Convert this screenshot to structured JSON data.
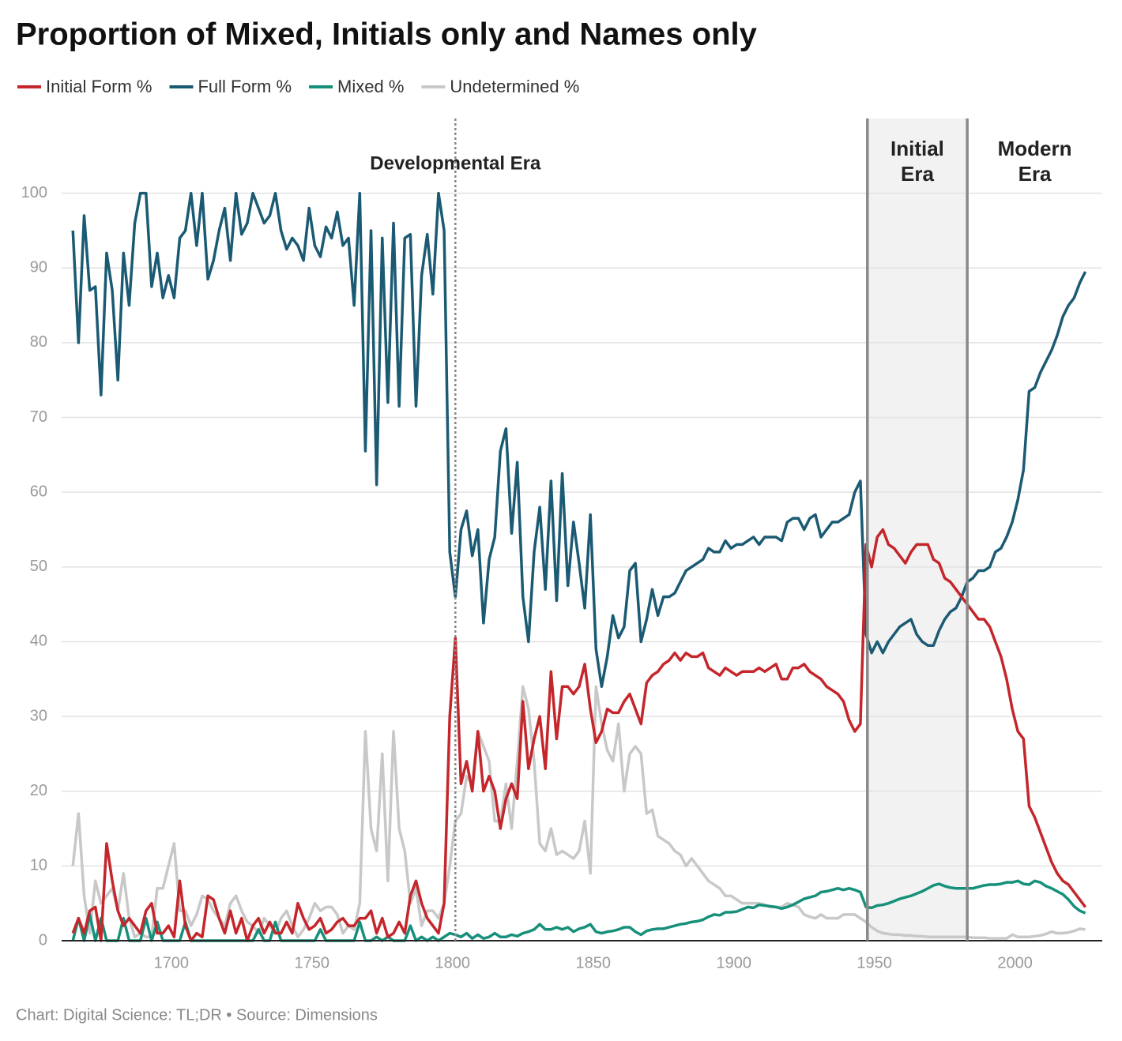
{
  "chart_data": {
    "type": "line",
    "title": "Proportion of Mixed, Initials only and Names only",
    "footer": "Chart: Digital Science: TL;DR • Source: Dimensions",
    "legend": "top-left",
    "grid": true,
    "xlim": [
      1661,
      2031
    ],
    "ylim": [
      0,
      110
    ],
    "xticks": [
      1700,
      1750,
      1800,
      1850,
      1900,
      1950,
      2000
    ],
    "yticks": [
      0,
      10,
      20,
      30,
      40,
      50,
      60,
      70,
      80,
      90,
      100
    ],
    "annotations": [
      {
        "text": "Developmental Era",
        "x": 1801
      },
      {
        "text": "Initial Era",
        "x_start": 1947.5,
        "x_end": 1983
      },
      {
        "text": "Modern Era"
      }
    ],
    "x": [
      1665,
      1667,
      1669,
      1671,
      1673,
      1675,
      1677,
      1679,
      1681,
      1683,
      1685,
      1687,
      1689,
      1691,
      1693,
      1695,
      1697,
      1699,
      1701,
      1703,
      1705,
      1707,
      1709,
      1711,
      1713,
      1715,
      1717,
      1719,
      1721,
      1723,
      1725,
      1727,
      1729,
      1731,
      1733,
      1735,
      1737,
      1739,
      1741,
      1743,
      1745,
      1747,
      1749,
      1751,
      1753,
      1755,
      1757,
      1759,
      1761,
      1763,
      1765,
      1767,
      1769,
      1771,
      1773,
      1775,
      1777,
      1779,
      1781,
      1783,
      1785,
      1787,
      1789,
      1791,
      1793,
      1795,
      1797,
      1799,
      1801,
      1803,
      1805,
      1807,
      1809,
      1811,
      1813,
      1815,
      1817,
      1819,
      1821,
      1823,
      1825,
      1827,
      1829,
      1831,
      1833,
      1835,
      1837,
      1839,
      1841,
      1843,
      1845,
      1847,
      1849,
      1851,
      1853,
      1855,
      1857,
      1859,
      1861,
      1863,
      1865,
      1867,
      1869,
      1871,
      1873,
      1875,
      1877,
      1879,
      1881,
      1883,
      1885,
      1887,
      1889,
      1891,
      1893,
      1895,
      1897,
      1899,
      1901,
      1903,
      1905,
      1907,
      1909,
      1911,
      1913,
      1915,
      1917,
      1919,
      1921,
      1923,
      1925,
      1927,
      1929,
      1931,
      1933,
      1935,
      1937,
      1939,
      1941,
      1943,
      1945,
      1947,
      1949,
      1951,
      1953,
      1955,
      1957,
      1959,
      1961,
      1963,
      1965,
      1967,
      1969,
      1971,
      1973,
      1975,
      1977,
      1979,
      1981,
      1983,
      1985,
      1987,
      1989,
      1991,
      1993,
      1995,
      1997,
      1999,
      2001,
      2003,
      2005,
      2007,
      2009,
      2011,
      2013,
      2015,
      2017,
      2019,
      2021,
      2023,
      2025
    ],
    "series": [
      {
        "name": "Initial Form %",
        "color": "#c4262b",
        "values": [
          1,
          3,
          1,
          4,
          4.5,
          0,
          13,
          8,
          4,
          2,
          3,
          2,
          1,
          4,
          5,
          1,
          1,
          2,
          0.5,
          8,
          2,
          0,
          1,
          0.5,
          6,
          5.5,
          3,
          1,
          4,
          1,
          3,
          0,
          2,
          3,
          1,
          2.5,
          1,
          1,
          2.5,
          1,
          5,
          3,
          1.5,
          2,
          3,
          1,
          1.5,
          2.5,
          3,
          2,
          2,
          3,
          3,
          4,
          1,
          3,
          0.5,
          1,
          2.5,
          1,
          6,
          8,
          5,
          3,
          2,
          1,
          5,
          30,
          40.5,
          21,
          24,
          20,
          28,
          20,
          22,
          20,
          15,
          19,
          21,
          19,
          32,
          23,
          27,
          30,
          23,
          36,
          27,
          34,
          34,
          33,
          34,
          37,
          31,
          26.5,
          28,
          31,
          30.5,
          30.5,
          32,
          33,
          31,
          29,
          34.5,
          35.5,
          36,
          37,
          37.5,
          38.5,
          37.5,
          38.5,
          38,
          38,
          38.5,
          36.5,
          36,
          35.5,
          36.5,
          36,
          35.5,
          36,
          36,
          36,
          36.5,
          36,
          36.5,
          37,
          35,
          35,
          36.5,
          36.5,
          37,
          36,
          35.5,
          35,
          34,
          33.5,
          33,
          32,
          29.5,
          28,
          29,
          53,
          50,
          54,
          55,
          53,
          52.5,
          51.5,
          50.5,
          52,
          53,
          53,
          53,
          51,
          50.5,
          48.5,
          48,
          47,
          46,
          45,
          44,
          43,
          43,
          42,
          40,
          38,
          35,
          31,
          28,
          27,
          18,
          16.5,
          14.5,
          12.5,
          10.5,
          9,
          8,
          7.5,
          6.5,
          5.5,
          4.5
        ]
      },
      {
        "name": "Full Form %",
        "color": "#1b5a73",
        "values": [
          95,
          80,
          97,
          87,
          87.5,
          73,
          92,
          87,
          75,
          92,
          85,
          96,
          100,
          100,
          87.5,
          92,
          86,
          89,
          86,
          94,
          95,
          100,
          93,
          100,
          88.5,
          91,
          95,
          98,
          91,
          100,
          94.5,
          96,
          100,
          98,
          96,
          97,
          100,
          95,
          92.5,
          94,
          93,
          91,
          98,
          93,
          91.5,
          95.5,
          94,
          97.5,
          93,
          94,
          85,
          100,
          65.5,
          95,
          61,
          94,
          72,
          96,
          71.5,
          94,
          94.5,
          71.5,
          89,
          94.5,
          86.5,
          100,
          95,
          52,
          46,
          55,
          57.5,
          51.5,
          55,
          42.5,
          51,
          54,
          65.5,
          68.5,
          54.5,
          64,
          46,
          40,
          52,
          58,
          47,
          61.5,
          45.5,
          62.5,
          47.5,
          56,
          50.5,
          44.5,
          57,
          39,
          34,
          38,
          43.5,
          40.5,
          42,
          49.5,
          50.5,
          40,
          43,
          47,
          43.5,
          46,
          46,
          46.5,
          48,
          49.5,
          50,
          50.5,
          51,
          52.5,
          52,
          52,
          53.5,
          52.5,
          53,
          53,
          53.5,
          54,
          53,
          54,
          54,
          54,
          53.5,
          56,
          56.5,
          56.5,
          55,
          56.5,
          57,
          54,
          55,
          56,
          56,
          56.5,
          57,
          60,
          61.5,
          41,
          38.5,
          40,
          38.5,
          40,
          41,
          42,
          42.5,
          43,
          41,
          40,
          39.5,
          39.5,
          41.5,
          43,
          44,
          44.5,
          46,
          48,
          48.5,
          49.5,
          49.5,
          50,
          52,
          52.5,
          54,
          56,
          59,
          63,
          73.5,
          74,
          76,
          77.5,
          79,
          81,
          83.5,
          85,
          86,
          88,
          89.5
        ]
      },
      {
        "name": "Mixed %",
        "color": "#16907a",
        "values": [
          0,
          3,
          0,
          3.5,
          0,
          3,
          0,
          0,
          0,
          3,
          0,
          0,
          0,
          3,
          0,
          2.5,
          0,
          0,
          0,
          0,
          2.5,
          0,
          0,
          0,
          0,
          0,
          0,
          0,
          0,
          0,
          0,
          0,
          0,
          1.5,
          0,
          0,
          2.5,
          0,
          0,
          0,
          0,
          0,
          0,
          0,
          1.5,
          0,
          0,
          0,
          0,
          0,
          0,
          2.5,
          0,
          0,
          0.5,
          0,
          0.5,
          0,
          0,
          0,
          2,
          0,
          0.5,
          0,
          0.5,
          0,
          0.5,
          1,
          0.8,
          0.5,
          1,
          0.3,
          0.8,
          0.3,
          0.5,
          1,
          0.5,
          0.5,
          0.8,
          0.6,
          1,
          1.2,
          1.5,
          2.2,
          1.5,
          1.5,
          1.8,
          1.5,
          1.8,
          1.2,
          1.6,
          1.8,
          2.2,
          1.2,
          1,
          1.2,
          1.3,
          1.5,
          1.8,
          1.8,
          1.2,
          0.8,
          1.3,
          1.5,
          1.6,
          1.6,
          1.8,
          2,
          2.2,
          2.3,
          2.5,
          2.6,
          2.8,
          3.2,
          3.5,
          3.4,
          3.8,
          3.8,
          3.9,
          4.2,
          4.5,
          4.4,
          4.8,
          4.7,
          4.6,
          4.5,
          4.3,
          4.5,
          4.8,
          5.2,
          5.6,
          5.8,
          6,
          6.5,
          6.6,
          6.8,
          7,
          6.8,
          7,
          6.8,
          6.5,
          4.5,
          4.4,
          4.7,
          4.8,
          5,
          5.3,
          5.6,
          5.8,
          6,
          6.3,
          6.6,
          7,
          7.4,
          7.6,
          7.3,
          7.1,
          7,
          7,
          7,
          7,
          7.2,
          7.4,
          7.5,
          7.5,
          7.6,
          7.8,
          7.8,
          8,
          7.6,
          7.5,
          8,
          7.8,
          7.3,
          7,
          6.6,
          6.2,
          5.5,
          4.6,
          4,
          3.7
        ]
      },
      {
        "name": "Undetermined %",
        "color": "#c8c8c8",
        "values": [
          10,
          17,
          6,
          1,
          8,
          5,
          6,
          7,
          4,
          9,
          3,
          0.5,
          1,
          0.5,
          0.5,
          7,
          7,
          10,
          13,
          4,
          4,
          2,
          3.5,
          6,
          5.5,
          4,
          3,
          2,
          5,
          6,
          4,
          2.5,
          2,
          1,
          3,
          2,
          1,
          3,
          4,
          2,
          0.5,
          1.5,
          3,
          5,
          4,
          4.5,
          4.5,
          3.5,
          1,
          2,
          1.5,
          5,
          28,
          15,
          12,
          25,
          8,
          28,
          15,
          12,
          5,
          7,
          2,
          4,
          4,
          3,
          5,
          10,
          16,
          17,
          22,
          21,
          28,
          26,
          24,
          16,
          16,
          21,
          15,
          24,
          34,
          31,
          24,
          13,
          12,
          15,
          11.5,
          12,
          11.5,
          11,
          12,
          16,
          9,
          34,
          29,
          25.5,
          24,
          29,
          20,
          25,
          26,
          25,
          17,
          17.5,
          14,
          13.5,
          13,
          12,
          11.5,
          10,
          11,
          10,
          9,
          8,
          7.5,
          7,
          6,
          6,
          5.5,
          5,
          5,
          5,
          5,
          4.8,
          4.5,
          4.5,
          4.5,
          5,
          4.8,
          4.5,
          3.5,
          3.2,
          3,
          3.5,
          3,
          3,
          3,
          3.5,
          3.5,
          3.5,
          3,
          2.5,
          1.8,
          1.3,
          1,
          0.9,
          0.8,
          0.8,
          0.7,
          0.7,
          0.6,
          0.6,
          0.5,
          0.5,
          0.5,
          0.5,
          0.5,
          0.5,
          0.5,
          0.5,
          0.4,
          0.4,
          0.4,
          0.3,
          0.3,
          0.3,
          0.3,
          0.8,
          0.5,
          0.5,
          0.5,
          0.6,
          0.7,
          0.9,
          1.2,
          1,
          1,
          1.1,
          1.3,
          1.6,
          1.5
        ]
      }
    ]
  }
}
